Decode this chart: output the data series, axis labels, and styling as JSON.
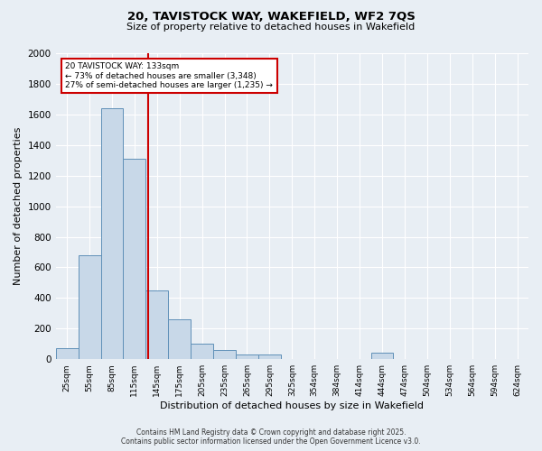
{
  "title_line1": "20, TAVISTOCK WAY, WAKEFIELD, WF2 7QS",
  "title_line2": "Size of property relative to detached houses in Wakefield",
  "xlabel": "Distribution of detached houses by size in Wakefield",
  "ylabel": "Number of detached properties",
  "categories": [
    "25sqm",
    "55sqm",
    "85sqm",
    "115sqm",
    "145sqm",
    "175sqm",
    "205sqm",
    "235sqm",
    "265sqm",
    "295sqm",
    "325sqm",
    "354sqm",
    "384sqm",
    "414sqm",
    "444sqm",
    "474sqm",
    "504sqm",
    "534sqm",
    "564sqm",
    "594sqm",
    "624sqm"
  ],
  "values": [
    70,
    680,
    1640,
    1310,
    450,
    260,
    100,
    60,
    30,
    30,
    0,
    0,
    0,
    0,
    40,
    0,
    0,
    0,
    0,
    0,
    0
  ],
  "bar_color": "#c8d8e8",
  "bar_edge_color": "#6090b8",
  "vline_color": "#cc0000",
  "vline_x": 3.6,
  "ylim": [
    0,
    2000
  ],
  "yticks": [
    0,
    200,
    400,
    600,
    800,
    1000,
    1200,
    1400,
    1600,
    1800,
    2000
  ],
  "annotation_text": "20 TAVISTOCK WAY: 133sqm\n← 73% of detached houses are smaller (3,348)\n27% of semi-detached houses are larger (1,235) →",
  "annotation_box_color": "#ffffff",
  "annotation_box_edge": "#cc0000",
  "footnote1": "Contains HM Land Registry data © Crown copyright and database right 2025.",
  "footnote2": "Contains public sector information licensed under the Open Government Licence v3.0.",
  "bg_color": "#e8eef4",
  "grid_color": "#ffffff",
  "figwidth": 6.0,
  "figheight": 5.0,
  "dpi": 100
}
